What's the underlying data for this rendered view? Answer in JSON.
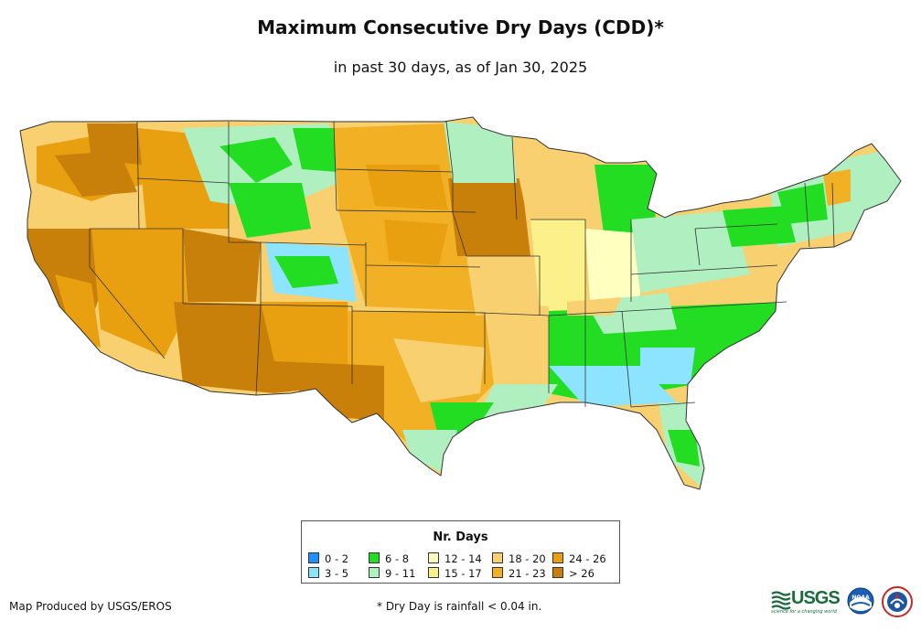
{
  "title": "Maximum Consecutive Dry Days (CDD)*",
  "subtitle": "in past 30 days, as of Jan 30, 2025",
  "legend": {
    "title": "Nr. Days",
    "items": [
      {
        "label": "0 - 2",
        "color": "#1e90ff"
      },
      {
        "label": "3 - 5",
        "color": "#8de4ff"
      },
      {
        "label": "6 - 8",
        "color": "#22dd22"
      },
      {
        "label": "9 - 11",
        "color": "#b0f0c0"
      },
      {
        "label": "12 - 14",
        "color": "#ffffc0"
      },
      {
        "label": "15 - 17",
        "color": "#fbf08a"
      },
      {
        "label": "18 - 20",
        "color": "#f8d070"
      },
      {
        "label": "21 - 23",
        "color": "#f2b024"
      },
      {
        "label": "24 - 26",
        "color": "#e8a010"
      },
      {
        "label": "> 26",
        "color": "#c9800a"
      }
    ]
  },
  "footer": {
    "credit": "Map Produced by USGS/EROS",
    "footnote": "* Dry Day is rainfall < 0.04 in."
  },
  "logos": {
    "usgs_text": "USGS",
    "usgs_tagline": "science for a changing world",
    "noaa_text": "NOAA"
  },
  "colors": {
    "state_border": "#333333"
  }
}
